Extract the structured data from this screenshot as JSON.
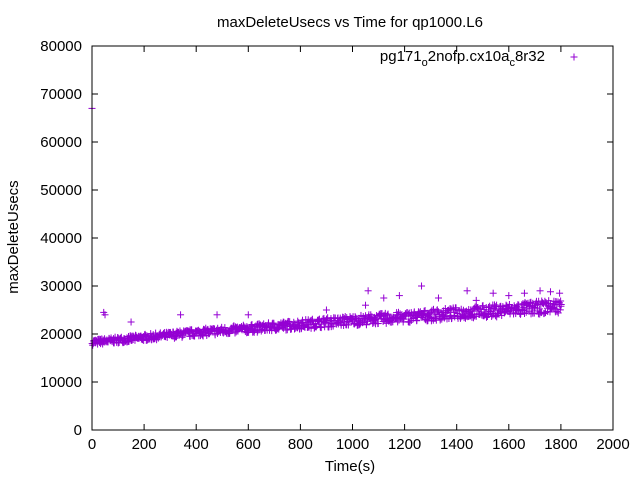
{
  "chart_data": {
    "type": "scatter",
    "title": "maxDeleteUsecs vs Time for qp1000.L6",
    "xlabel": "Time(s)",
    "ylabel": "maxDeleteUsecs",
    "xlim": [
      0,
      2000
    ],
    "ylim": [
      0,
      80000
    ],
    "xticks": [
      "0",
      "200",
      "400",
      "600",
      "800",
      "1000",
      "1200",
      "1400",
      "1600",
      "1800",
      "2000"
    ],
    "yticks": [
      "0",
      "10000",
      "20000",
      "30000",
      "40000",
      "50000",
      "60000",
      "70000",
      "80000"
    ],
    "grid": false,
    "legend_position": "top-right",
    "marker": "plus",
    "series": [
      {
        "name": "pg171_o2nofp.cx10a_c8r32",
        "name_parts": [
          "pg171",
          "o",
          "2nofp.cx10a",
          "c",
          "8r32"
        ],
        "color": "#9400d3",
        "trend": {
          "x": [
            0,
            200,
            400,
            600,
            800,
            1000,
            1200,
            1400,
            1600,
            1800
          ],
          "y": [
            18200,
            19200,
            20200,
            21000,
            21900,
            22700,
            23400,
            24200,
            24900,
            25700
          ]
        },
        "x_range": [
          0,
          1800
        ],
        "outliers": {
          "x": [
            0,
            45,
            50,
            150,
            340,
            480,
            600,
            900,
            1050,
            1060,
            1120,
            1180,
            1265,
            1330,
            1440,
            1475,
            1540,
            1600,
            1660,
            1720,
            1760,
            1795
          ],
          "y": [
            67000,
            24500,
            24000,
            22500,
            24000,
            24000,
            24000,
            25000,
            26000,
            29000,
            27500,
            28000,
            30000,
            27500,
            29000,
            27000,
            28500,
            28000,
            28500,
            29000,
            28800,
            28500
          ]
        }
      }
    ]
  }
}
